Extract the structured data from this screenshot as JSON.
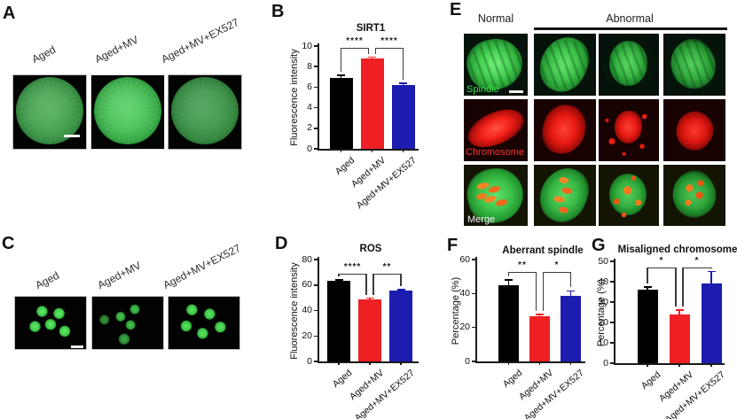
{
  "figure": {
    "panels": {
      "A": {
        "letter": "A",
        "conditions": [
          "Aged",
          "Aged+MV",
          "Aged+MV+EX527"
        ]
      },
      "B": {
        "letter": "B"
      },
      "C": {
        "letter": "C",
        "conditions": [
          "Aged",
          "Aged+MV",
          "Aged+MV+EX527"
        ]
      },
      "D": {
        "letter": "D"
      },
      "E": {
        "letter": "E",
        "normal_header": "Normal",
        "abnormal_header": "Abnormal",
        "row_labels": [
          "Spindle",
          "Chromosome",
          "Merge"
        ]
      },
      "F": {
        "letter": "F"
      },
      "G": {
        "letter": "G"
      }
    },
    "colors": {
      "bar_black": "#000000",
      "bar_red": "#ee2024",
      "bar_blue": "#1c1cb0",
      "spindle_green": "#3fe04b",
      "chromosome_red": "#ff2f2f",
      "merge_white": "#f5f5f5"
    }
  },
  "chart_data": [
    {
      "panel": "B",
      "type": "bar",
      "title": "SIRT1",
      "ylabel": "Fluorescence intensity",
      "categories": [
        "Aged",
        "Aged+MV",
        "Aged+MV+EX527"
      ],
      "values": [
        6.9,
        8.8,
        6.2
      ],
      "errors": [
        0.25,
        0.12,
        0.18
      ],
      "colors": [
        "#000000",
        "#ee2024",
        "#1c1cb0"
      ],
      "ylim": [
        0,
        10
      ],
      "yticks": [
        0,
        2,
        4,
        6,
        8,
        10
      ],
      "grid": false,
      "legend": "none",
      "significance": [
        {
          "pair": [
            0,
            1
          ],
          "label": "****"
        },
        {
          "pair": [
            1,
            2
          ],
          "label": "****"
        }
      ]
    },
    {
      "panel": "D",
      "type": "bar",
      "title": "ROS",
      "ylabel": "Fluorescence intensity",
      "categories": [
        "Aged",
        "Aged+MV",
        "Aged+MV+EX527"
      ],
      "values": [
        63,
        48.5,
        55.5
      ],
      "errors": [
        1,
        1.2,
        0.8
      ],
      "colors": [
        "#000000",
        "#ee2024",
        "#1c1cb0"
      ],
      "ylim": [
        0,
        80
      ],
      "yticks": [
        0,
        20,
        40,
        60,
        80
      ],
      "grid": false,
      "legend": "none",
      "significance": [
        {
          "pair": [
            0,
            1
          ],
          "label": "****"
        },
        {
          "pair": [
            1,
            2
          ],
          "label": "**"
        }
      ]
    },
    {
      "panel": "F",
      "type": "bar",
      "title": "Aberrant spindle",
      "ylabel": "Percentage (%)",
      "categories": [
        "Aged",
        "Aged+MV",
        "Aged+MV+EX527"
      ],
      "values": [
        45,
        26.5,
        38.5
      ],
      "errors": [
        3,
        1.2,
        3
      ],
      "colors": [
        "#000000",
        "#ee2024",
        "#1c1cb0"
      ],
      "ylim": [
        0,
        60
      ],
      "yticks": [
        0,
        20,
        40,
        60
      ],
      "grid": false,
      "legend": "none",
      "significance": [
        {
          "pair": [
            0,
            1
          ],
          "label": "**"
        },
        {
          "pair": [
            1,
            2
          ],
          "label": "*"
        }
      ]
    },
    {
      "panel": "G",
      "type": "bar",
      "title": "Misaligned chromosome",
      "ylabel": "Percentage (%)",
      "categories": [
        "Aged",
        "Aged+MV",
        "Aged+MV+EX527"
      ],
      "values": [
        36,
        24,
        39
      ],
      "errors": [
        1.5,
        2,
        6
      ],
      "colors": [
        "#000000",
        "#ee2024",
        "#1c1cb0"
      ],
      "ylim": [
        0,
        50
      ],
      "yticks": [
        0,
        10,
        20,
        30,
        40,
        50
      ],
      "grid": false,
      "legend": "none",
      "significance": [
        {
          "pair": [
            0,
            1
          ],
          "label": "*"
        },
        {
          "pair": [
            1,
            2
          ],
          "label": "*"
        }
      ]
    }
  ]
}
